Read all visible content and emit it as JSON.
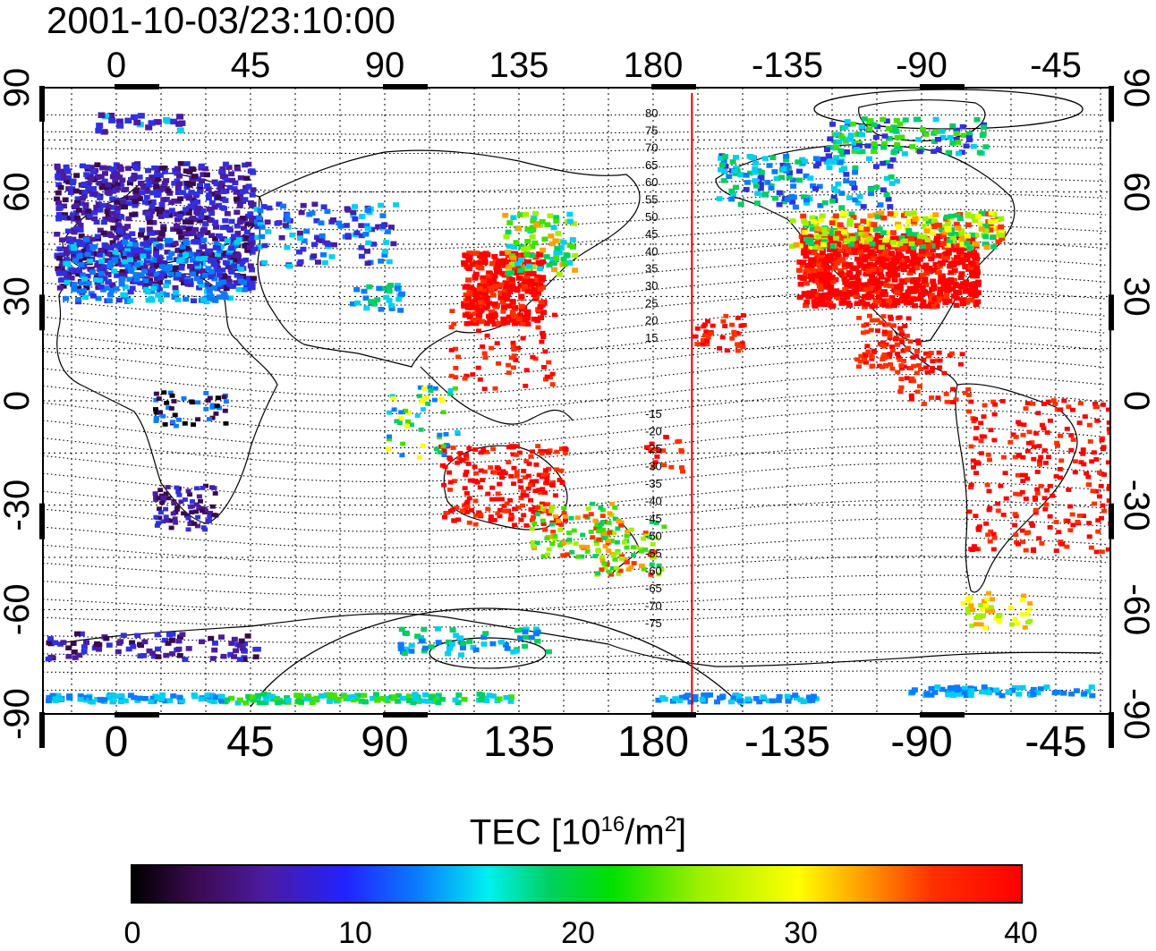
{
  "title": "2001-10-03/23:10:00",
  "map": {
    "lon_ticks_top": [
      "0",
      "45",
      "90",
      "135",
      "180",
      "-135",
      "-90",
      "-45"
    ],
    "lon_ticks_bottom": [
      "0",
      "45",
      "90",
      "135",
      "180",
      "-135",
      "-90",
      "-45"
    ],
    "lat_ticks_left": [
      "90",
      "60",
      "30",
      "0",
      "-30",
      "-60",
      "-90"
    ],
    "lat_ticks_right": [
      "90",
      "60",
      "30",
      "0",
      "-30",
      "-60",
      "-90"
    ],
    "contour_labels_north": [
      "80",
      "75",
      "70",
      "65",
      "60",
      "55",
      "50",
      "45",
      "40",
      "35",
      "30",
      "25",
      "20",
      "15"
    ],
    "contour_labels_south": [
      "-15",
      "-20",
      "-25",
      "-30",
      "-35",
      "-40",
      "-45",
      "-50",
      "-55",
      "-60",
      "-65",
      "-70",
      "-75"
    ],
    "marker_line_longitude": -167,
    "marker_color": "#e00000"
  },
  "colorbar": {
    "label_main": "TEC  [10",
    "label_exp": "16",
    "label_unit": "/m",
    "label_exp2": "2",
    "label_end": "]",
    "ticks": [
      "0",
      "10",
      "20",
      "30",
      "40"
    ],
    "min": 0,
    "max": 40
  }
}
